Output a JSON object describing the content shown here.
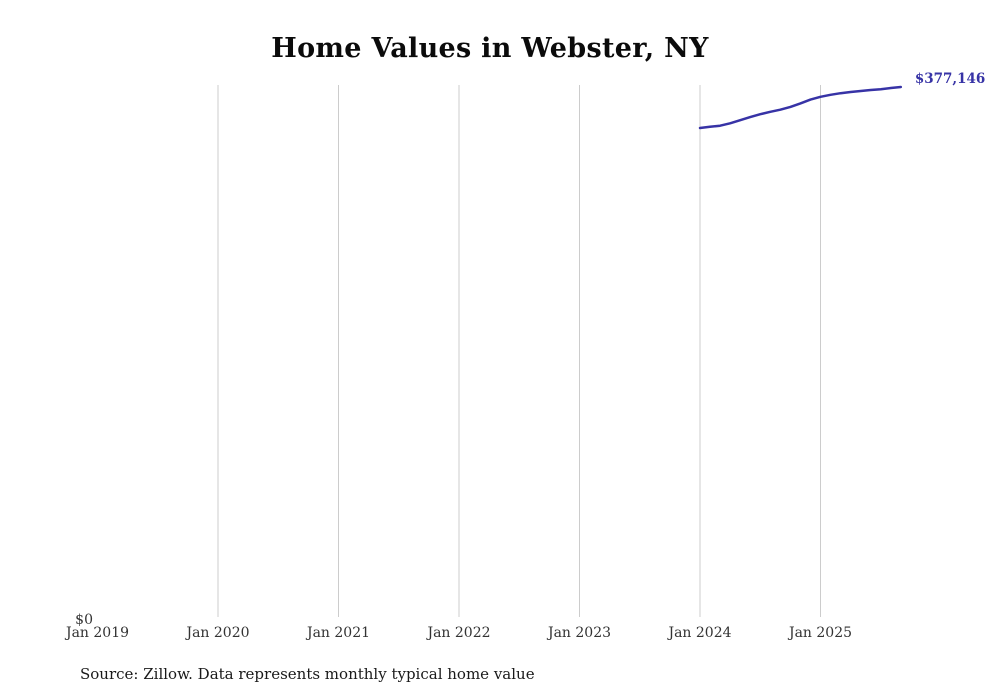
{
  "title": "Home Values in Webster, NY",
  "end_label": "$377,146",
  "y_zero_label": "$0",
  "source_note": "Source: Zillow. Data represents monthly typical home value",
  "colors": {
    "line": "#3733a6",
    "grid": "#cccccc",
    "tick": "#333333",
    "title": "#0b0b0b",
    "source": "#1a1a1a"
  },
  "chart_data": {
    "type": "line",
    "title": "Home Values in Webster, NY",
    "xlabel": "",
    "ylabel": "",
    "x_ticks": [
      "Jan 2019",
      "Jan 2020",
      "Jan 2021",
      "Jan 2022",
      "Jan 2023",
      "Jan 2024",
      "Jan 2025"
    ],
    "ylim": [
      0,
      377146
    ],
    "grid": "vertical-only",
    "legend": "none",
    "end_annotation": "$377,146",
    "series": [
      {
        "name": "Typical home value",
        "points": [
          {
            "date": "2024-01",
            "value": 348000
          },
          {
            "date": "2024-02",
            "value": 348800
          },
          {
            "date": "2024-03",
            "value": 349600
          },
          {
            "date": "2024-04",
            "value": 351300
          },
          {
            "date": "2024-05",
            "value": 353500
          },
          {
            "date": "2024-06",
            "value": 355700
          },
          {
            "date": "2024-07",
            "value": 357800
          },
          {
            "date": "2024-08",
            "value": 359500
          },
          {
            "date": "2024-09",
            "value": 361000
          },
          {
            "date": "2024-10",
            "value": 363000
          },
          {
            "date": "2024-11",
            "value": 365500
          },
          {
            "date": "2024-12",
            "value": 368200
          },
          {
            "date": "2025-01",
            "value": 370200
          },
          {
            "date": "2025-02",
            "value": 371600
          },
          {
            "date": "2025-03",
            "value": 372700
          },
          {
            "date": "2025-04",
            "value": 373600
          },
          {
            "date": "2025-05",
            "value": 374300
          },
          {
            "date": "2025-06",
            "value": 375000
          },
          {
            "date": "2025-07",
            "value": 375600
          },
          {
            "date": "2025-08",
            "value": 376400
          },
          {
            "date": "2025-09",
            "value": 377146
          }
        ]
      }
    ]
  }
}
